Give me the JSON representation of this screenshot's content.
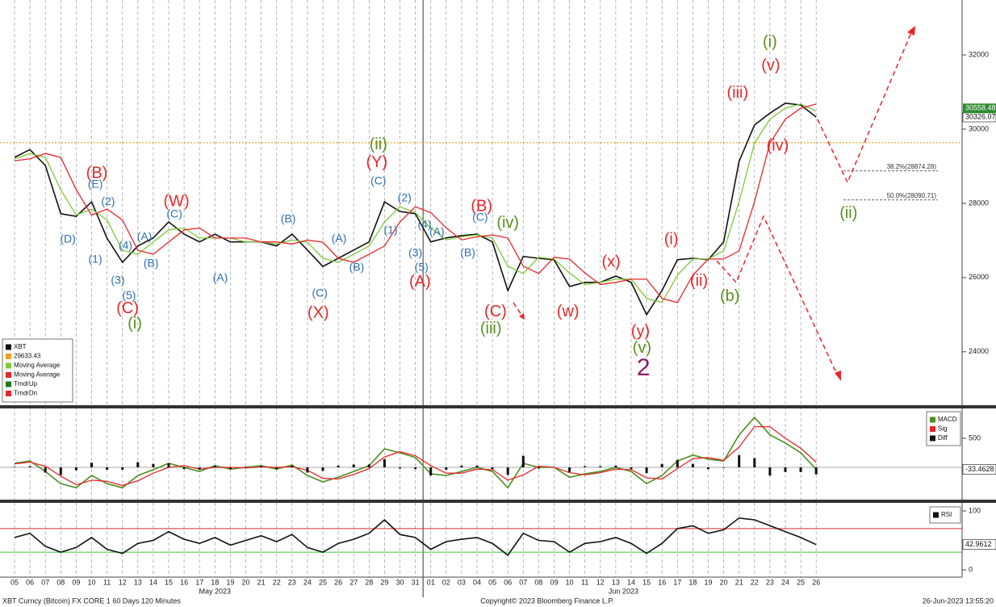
{
  "chart_data": [
    {
      "type": "line",
      "categories": [
        "05",
        "06",
        "07",
        "08",
        "09",
        "10",
        "11",
        "12",
        "13",
        "14",
        "15",
        "16",
        "17",
        "18",
        "19",
        "20",
        "21",
        "22",
        "23",
        "24",
        "25",
        "26",
        "27",
        "28",
        "29",
        "30",
        "31",
        "01",
        "02",
        "03",
        "04",
        "05",
        "06",
        "07",
        "08",
        "09",
        "10",
        "11",
        "12",
        "13",
        "14",
        "15",
        "16",
        "17",
        "18",
        "19",
        "20",
        "21",
        "22",
        "23",
        "24",
        "25",
        "26"
      ],
      "month_groups": [
        {
          "label": "May 2023",
          "from": 0,
          "to": 26
        },
        {
          "label": "Jun 2023",
          "from": 27,
          "to": 52
        }
      ],
      "ylim": [
        22560,
        33480
      ],
      "yticks": [
        24000,
        26000,
        28000,
        30000,
        32000
      ],
      "grid": true,
      "series": [
        {
          "name": "XBT",
          "color": "#111111",
          "last_tag": true,
          "values": [
            29240,
            29450,
            29020,
            27720,
            27650,
            28040,
            27060,
            26410,
            26850,
            27070,
            27500,
            27170,
            26960,
            27170,
            26960,
            26960,
            26960,
            26850,
            27170,
            26740,
            26300,
            26520,
            26740,
            26960,
            28040,
            27780,
            27720,
            26960,
            27070,
            27130,
            27170,
            26960,
            25650,
            26570,
            26520,
            26480,
            25760,
            25870,
            25870,
            26040,
            25870,
            25000,
            25650,
            26480,
            26520,
            26480,
            26960,
            29130,
            30110,
            30430,
            30700,
            30650,
            30326.07
          ]
        },
        {
          "name": "Moving Average",
          "color": "#7ec83a",
          "values": [
            29200,
            29345,
            29235,
            28370,
            27685,
            27845,
            27550,
            26735,
            26630,
            26960,
            27285,
            27335,
            27065,
            27065,
            27065,
            26960,
            26960,
            26905,
            27010,
            26955,
            26520,
            26410,
            26630,
            26850,
            27500,
            27910,
            27750,
            27340,
            27015,
            27100,
            27150,
            27065,
            26305,
            26110,
            26545,
            26500,
            26120,
            25815,
            25870,
            25955,
            25955,
            25435,
            25325,
            26065,
            26500,
            26500,
            26720,
            28045,
            29620,
            30270,
            30565,
            30675,
            30490
          ]
        },
        {
          "name": "Moving Average",
          "color": "#e8262a",
          "values": [
            29150,
            29200,
            29345,
            29235,
            28370,
            27685,
            27845,
            27550,
            26735,
            26630,
            26960,
            27285,
            27335,
            27065,
            27065,
            27065,
            26960,
            26960,
            26905,
            27010,
            26955,
            26520,
            26410,
            26630,
            26850,
            27500,
            27910,
            27750,
            27340,
            27015,
            27100,
            27150,
            27065,
            26305,
            26110,
            26545,
            26500,
            26120,
            25815,
            25870,
            25955,
            25955,
            25435,
            25325,
            26065,
            26500,
            26500,
            26720,
            28045,
            29620,
            30270,
            30565,
            30675
          ]
        }
      ],
      "hlines": [
        {
          "value": 29633.43,
          "color": "#f0a020"
        }
      ],
      "extra_legend": [
        {
          "name": "TrndrUp",
          "color": "#1a7a1a"
        },
        {
          "name": "TrndrDn",
          "color": "#e8262a"
        }
      ],
      "tags": [
        {
          "value": 30558.48,
          "color": "#2e8b2e"
        }
      ],
      "fib_levels": [
        {
          "label": "38.2%(28874.28)",
          "value": 28874.28
        },
        {
          "label": "50.0%(28090.71)",
          "value": 28090.71
        }
      ],
      "annotations": [
        {
          "text": "(B)",
          "color": "#e8262a",
          "style": "major",
          "x": 5.34,
          "y": 28800
        },
        {
          "text": "(E)",
          "color": "#2f6fb0",
          "style": "minor",
          "x": 5.24,
          "y": 28500
        },
        {
          "text": "(2)",
          "color": "#2f6fb0",
          "style": "minor",
          "x": 6.07,
          "y": 28040
        },
        {
          "text": "(D)",
          "color": "#2f6fb0",
          "style": "minor",
          "x": 3.46,
          "y": 27020
        },
        {
          "text": "(1)",
          "color": "#2f6fb0",
          "style": "minor",
          "x": 5.24,
          "y": 26480
        },
        {
          "text": "(4)",
          "color": "#2f6fb0",
          "style": "minor",
          "x": 7.2,
          "y": 26850
        },
        {
          "text": "(3)",
          "color": "#2f6fb0",
          "style": "minor",
          "x": 6.7,
          "y": 25910
        },
        {
          "text": "(5)",
          "color": "#2f6fb0",
          "style": "minor",
          "x": 7.43,
          "y": 25500
        },
        {
          "text": "(C)",
          "color": "#e8262a",
          "style": "major",
          "x": 7.33,
          "y": 25150
        },
        {
          "text": "(i)",
          "color": "#5a8f1e",
          "style": "major",
          "x": 7.8,
          "y": 24740
        },
        {
          "text": "(A)",
          "color": "#2f6fb0",
          "style": "minor",
          "x": 8.43,
          "y": 27090
        },
        {
          "text": "(B)",
          "color": "#2f6fb0",
          "style": "minor",
          "x": 8.85,
          "y": 26370
        },
        {
          "text": "(C)",
          "color": "#2f6fb0",
          "style": "minor",
          "x": 10.37,
          "y": 27700
        },
        {
          "text": "(W)",
          "color": "#e8262a",
          "style": "major",
          "x": 10.5,
          "y": 28040
        },
        {
          "text": "(A)",
          "color": "#2f6fb0",
          "style": "minor",
          "x": 13.35,
          "y": 25980
        },
        {
          "text": "(B)",
          "color": "#2f6fb0",
          "style": "minor",
          "x": 17.75,
          "y": 27570
        },
        {
          "text": "(A)",
          "color": "#2f6fb0",
          "style": "minor",
          "x": 21.05,
          "y": 27040
        },
        {
          "text": "(C)",
          "color": "#2f6fb0",
          "style": "minor",
          "x": 19.8,
          "y": 25570
        },
        {
          "text": "(X)",
          "color": "#e8262a",
          "style": "major",
          "x": 19.7,
          "y": 25040
        },
        {
          "text": "(B)",
          "color": "#2f6fb0",
          "style": "minor",
          "x": 22.2,
          "y": 26260
        },
        {
          "text": "(ii)",
          "color": "#5a8f1e",
          "style": "major",
          "x": 23.6,
          "y": 29570
        },
        {
          "text": "(Y)",
          "color": "#e8262a",
          "style": "major",
          "x": 23.5,
          "y": 29090
        },
        {
          "text": "(C)",
          "color": "#2f6fb0",
          "style": "minor",
          "x": 23.6,
          "y": 28590
        },
        {
          "text": "(2)",
          "color": "#2f6fb0",
          "style": "minor",
          "x": 25.3,
          "y": 28130
        },
        {
          "text": "(1)",
          "color": "#2f6fb0",
          "style": "minor",
          "x": 24.4,
          "y": 27260
        },
        {
          "text": "(4)",
          "color": "#2f6fb0",
          "style": "minor",
          "x": 26.6,
          "y": 27410
        },
        {
          "text": "(A)",
          "color": "#2f6fb0",
          "style": "minor",
          "x": 27.4,
          "y": 27220
        },
        {
          "text": "(3)",
          "color": "#2f6fb0",
          "style": "minor",
          "x": 26.0,
          "y": 26650
        },
        {
          "text": "(5)",
          "color": "#2f6fb0",
          "style": "minor",
          "x": 26.4,
          "y": 26260
        },
        {
          "text": "(A)",
          "color": "#e8262a",
          "style": "major",
          "x": 26.3,
          "y": 25870
        },
        {
          "text": "(B)",
          "color": "#e8262a",
          "style": "major",
          "x": 30.3,
          "y": 27910
        },
        {
          "text": "(C)",
          "color": "#2f6fb0",
          "style": "minor",
          "x": 30.2,
          "y": 27610
        },
        {
          "text": "(iv)",
          "color": "#5a8f1e",
          "style": "major",
          "x": 32.0,
          "y": 27460
        },
        {
          "text": "(B)",
          "color": "#2f6fb0",
          "style": "minor",
          "x": 29.4,
          "y": 26650
        },
        {
          "text": "(C)",
          "color": "#e8262a",
          "style": "major",
          "x": 31.2,
          "y": 25070
        },
        {
          "text": "(iii)",
          "color": "#5a8f1e",
          "style": "major",
          "x": 30.9,
          "y": 24610
        },
        {
          "text": "(w)",
          "color": "#e8262a",
          "style": "major",
          "x": 35.9,
          "y": 25070
        },
        {
          "text": "(x)",
          "color": "#e8262a",
          "style": "major",
          "x": 38.7,
          "y": 26410
        },
        {
          "text": "(y)",
          "color": "#e8262a",
          "style": "major",
          "x": 40.6,
          "y": 24540
        },
        {
          "text": "(v)",
          "color": "#5a8f1e",
          "style": "major",
          "x": 40.7,
          "y": 24090
        },
        {
          "text": "2",
          "color": "#8b1a6b",
          "style": "degree",
          "x": 40.8,
          "y": 23540
        },
        {
          "text": "(i)",
          "color": "#e8262a",
          "style": "major",
          "x": 42.6,
          "y": 27020
        },
        {
          "text": "(ii)",
          "color": "#e8262a",
          "style": "major",
          "x": 44.4,
          "y": 25890
        },
        {
          "text": "(b)",
          "color": "#5a8f1e",
          "style": "major",
          "x": 46.4,
          "y": 25480
        },
        {
          "text": "(iii)",
          "color": "#e8262a",
          "style": "major",
          "x": 46.9,
          "y": 30960
        },
        {
          "text": "(i)",
          "color": "#5a8f1e",
          "style": "major",
          "x": 49.0,
          "y": 32330
        },
        {
          "text": "(v)",
          "color": "#e8262a",
          "style": "major",
          "x": 49.05,
          "y": 31700
        },
        {
          "text": "(iv)",
          "color": "#e8262a",
          "style": "major",
          "x": 49.5,
          "y": 29540
        },
        {
          "text": "(ii)",
          "color": "#5a8f1e",
          "style": "major",
          "x": 54.1,
          "y": 27720
        }
      ]
    },
    {
      "type": "line",
      "ylim": [
        -555,
        1014
      ],
      "yticks": [
        500
      ],
      "series": [
        {
          "name": "MACD",
          "color": "#4a8f1e",
          "last_tag": true,
          "values": [
            70,
            110,
            -70,
            -280,
            -350,
            -140,
            -280,
            -350,
            -140,
            -40,
            70,
            0,
            -70,
            30,
            -30,
            0,
            30,
            -30,
            40,
            -140,
            -250,
            -170,
            -70,
            30,
            320,
            250,
            170,
            -110,
            -140,
            -70,
            0,
            -70,
            -350,
            70,
            0,
            0,
            -170,
            -110,
            -70,
            0,
            -70,
            -280,
            -140,
            110,
            210,
            140,
            110,
            560,
            860,
            560,
            420,
            250,
            -33.4628
          ]
        },
        {
          "name": "Sig",
          "color": "#e8262a",
          "values": [
            60,
            90,
            20,
            -150,
            -300,
            -220,
            -240,
            -310,
            -230,
            -100,
            0,
            30,
            -30,
            0,
            0,
            -10,
            10,
            0,
            10,
            -50,
            -190,
            -200,
            -120,
            -20,
            180,
            270,
            200,
            30,
            -100,
            -100,
            -30,
            -40,
            -220,
            -130,
            20,
            0,
            -90,
            -130,
            -90,
            -30,
            -40,
            -180,
            -200,
            -20,
            150,
            170,
            120,
            350,
            700,
            700,
            500,
            330,
            90
          ]
        },
        {
          "name": "Diff",
          "color": "#111111",
          "style": "bar",
          "values": [
            10,
            20,
            -90,
            -130,
            -50,
            80,
            -40,
            -40,
            90,
            60,
            70,
            -30,
            -40,
            30,
            -30,
            10,
            20,
            -30,
            30,
            -90,
            -60,
            30,
            50,
            50,
            140,
            -20,
            -30,
            -140,
            -40,
            30,
            30,
            -30,
            -130,
            200,
            -20,
            0,
            -80,
            20,
            20,
            30,
            -30,
            -100,
            60,
            130,
            60,
            -30,
            -10,
            210,
            160,
            -140,
            -80,
            -80,
            -120
          ]
        }
      ]
    },
    {
      "type": "line",
      "ylim": [
        -12.3,
        113.7
      ],
      "yticks": [
        0,
        100
      ],
      "levels": [
        {
          "value": 70,
          "color": "#e8262a"
        },
        {
          "value": 30,
          "color": "#3cc43c"
        }
      ],
      "series": [
        {
          "name": "RSI",
          "color": "#111111",
          "last_tag": true,
          "values": [
            55,
            62,
            40,
            30,
            38,
            55,
            35,
            28,
            45,
            50,
            65,
            52,
            45,
            55,
            42,
            50,
            58,
            48,
            60,
            38,
            30,
            45,
            52,
            62,
            85,
            60,
            55,
            35,
            48,
            52,
            55,
            45,
            25,
            62,
            50,
            48,
            30,
            45,
            48,
            55,
            45,
            28,
            45,
            70,
            75,
            62,
            68,
            88,
            85,
            75,
            65,
            55,
            42.9612
          ]
        }
      ]
    }
  ],
  "footer": {
    "left": "XBT Curncy (Bitcoin) FX CORE 1 60 Days 120 Minutes",
    "center": "Copyright© 2023 Bloomberg Finance L.P.",
    "right": "26-Jun-2023 13:55:20"
  }
}
